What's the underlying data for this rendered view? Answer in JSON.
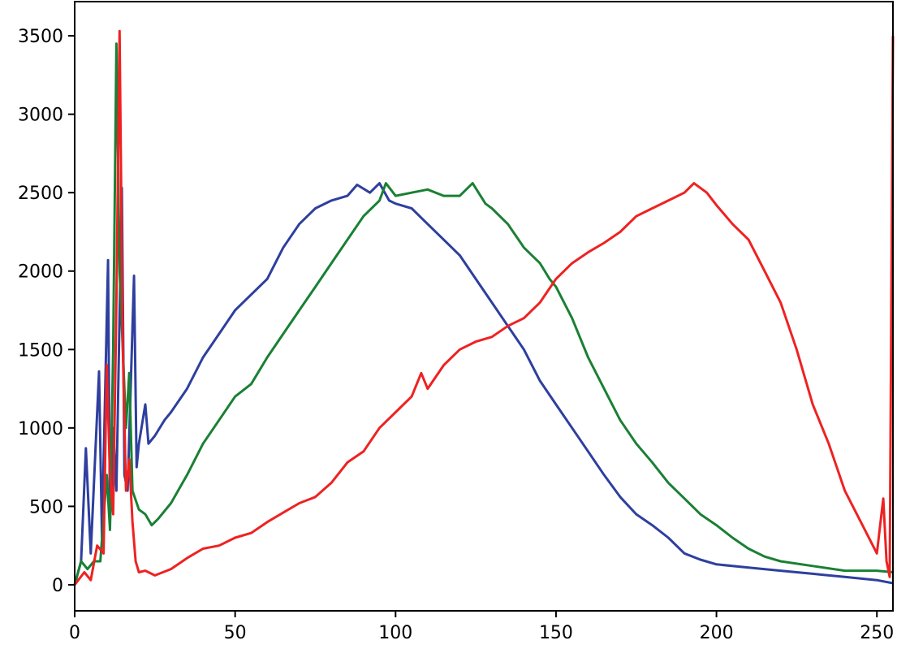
{
  "chart_data": {
    "type": "line",
    "title": "",
    "xlabel": "",
    "ylabel": "",
    "xlim": [
      0,
      255
    ],
    "ylim": [
      -166,
      3718
    ],
    "grid": false,
    "legend": "none",
    "xticks": [
      "0",
      "50",
      "100",
      "150",
      "200",
      "250"
    ],
    "yticks": [
      "0",
      "500",
      "1000",
      "1500",
      "2000",
      "2500",
      "3000",
      "3500"
    ],
    "series": [
      {
        "color": "#2e3f9e",
        "points": [
          [
            0,
            0
          ],
          [
            2,
            150
          ],
          [
            3.5,
            870
          ],
          [
            5,
            200
          ],
          [
            7.6,
            1360
          ],
          [
            8.5,
            300
          ],
          [
            10.4,
            2070
          ],
          [
            11,
            400
          ],
          [
            12,
            1000
          ],
          [
            13,
            600
          ],
          [
            14.7,
            2530
          ],
          [
            15.5,
            700
          ],
          [
            16.5,
            600
          ],
          [
            18.5,
            1970
          ],
          [
            19.3,
            750
          ],
          [
            20,
            900
          ],
          [
            22,
            1150
          ],
          [
            23,
            900
          ],
          [
            25,
            950
          ],
          [
            28,
            1050
          ],
          [
            30,
            1100
          ],
          [
            35,
            1250
          ],
          [
            40,
            1450
          ],
          [
            45,
            1600
          ],
          [
            50,
            1750
          ],
          [
            55,
            1850
          ],
          [
            60,
            1950
          ],
          [
            65,
            2150
          ],
          [
            70,
            2300
          ],
          [
            75,
            2400
          ],
          [
            80,
            2450
          ],
          [
            85,
            2480
          ],
          [
            88,
            2550
          ],
          [
            92,
            2500
          ],
          [
            95,
            2560
          ],
          [
            98,
            2450
          ],
          [
            100,
            2430
          ],
          [
            105,
            2400
          ],
          [
            110,
            2300
          ],
          [
            115,
            2200
          ],
          [
            120,
            2100
          ],
          [
            125,
            1950
          ],
          [
            130,
            1800
          ],
          [
            135,
            1650
          ],
          [
            140,
            1500
          ],
          [
            145,
            1300
          ],
          [
            150,
            1150
          ],
          [
            155,
            1000
          ],
          [
            160,
            850
          ],
          [
            165,
            700
          ],
          [
            170,
            560
          ],
          [
            175,
            450
          ],
          [
            180,
            380
          ],
          [
            185,
            300
          ],
          [
            190,
            200
          ],
          [
            195,
            160
          ],
          [
            200,
            130
          ],
          [
            210,
            110
          ],
          [
            220,
            90
          ],
          [
            230,
            70
          ],
          [
            240,
            50
          ],
          [
            250,
            30
          ],
          [
            255,
            10
          ]
        ]
      },
      {
        "color": "#1a8034",
        "points": [
          [
            0,
            0
          ],
          [
            2,
            150
          ],
          [
            4,
            100
          ],
          [
            6,
            150
          ],
          [
            8,
            150
          ],
          [
            10,
            700
          ],
          [
            11,
            350
          ],
          [
            12,
            1500
          ],
          [
            13,
            3450
          ],
          [
            14,
            2000
          ],
          [
            15,
            1500
          ],
          [
            16,
            1000
          ],
          [
            17,
            1350
          ],
          [
            18,
            600
          ],
          [
            20,
            480
          ],
          [
            22,
            450
          ],
          [
            24,
            380
          ],
          [
            26,
            420
          ],
          [
            30,
            520
          ],
          [
            35,
            700
          ],
          [
            40,
            900
          ],
          [
            45,
            1050
          ],
          [
            50,
            1200
          ],
          [
            55,
            1280
          ],
          [
            60,
            1450
          ],
          [
            65,
            1600
          ],
          [
            70,
            1750
          ],
          [
            75,
            1900
          ],
          [
            80,
            2050
          ],
          [
            85,
            2200
          ],
          [
            90,
            2350
          ],
          [
            95,
            2450
          ],
          [
            97,
            2560
          ],
          [
            100,
            2480
          ],
          [
            105,
            2500
          ],
          [
            110,
            2520
          ],
          [
            115,
            2480
          ],
          [
            120,
            2480
          ],
          [
            124,
            2560
          ],
          [
            128,
            2430
          ],
          [
            130,
            2400
          ],
          [
            135,
            2300
          ],
          [
            140,
            2150
          ],
          [
            145,
            2050
          ],
          [
            148,
            1950
          ],
          [
            150,
            1900
          ],
          [
            155,
            1700
          ],
          [
            160,
            1450
          ],
          [
            165,
            1250
          ],
          [
            170,
            1050
          ],
          [
            175,
            900
          ],
          [
            180,
            780
          ],
          [
            185,
            650
          ],
          [
            190,
            550
          ],
          [
            195,
            450
          ],
          [
            200,
            380
          ],
          [
            205,
            300
          ],
          [
            210,
            230
          ],
          [
            215,
            180
          ],
          [
            220,
            150
          ],
          [
            230,
            120
          ],
          [
            240,
            90
          ],
          [
            250,
            90
          ],
          [
            255,
            80
          ]
        ]
      },
      {
        "color": "#ee2222",
        "points": [
          [
            0,
            0
          ],
          [
            3,
            80
          ],
          [
            5,
            30
          ],
          [
            7,
            250
          ],
          [
            9,
            200
          ],
          [
            10,
            1400
          ],
          [
            11,
            700
          ],
          [
            12,
            450
          ],
          [
            13,
            1800
          ],
          [
            14,
            3530
          ],
          [
            15,
            1500
          ],
          [
            16,
            600
          ],
          [
            17,
            800
          ],
          [
            18,
            400
          ],
          [
            19,
            150
          ],
          [
            20,
            80
          ],
          [
            22,
            90
          ],
          [
            25,
            60
          ],
          [
            30,
            100
          ],
          [
            35,
            170
          ],
          [
            40,
            230
          ],
          [
            45,
            250
          ],
          [
            50,
            300
          ],
          [
            55,
            330
          ],
          [
            60,
            400
          ],
          [
            65,
            460
          ],
          [
            70,
            520
          ],
          [
            75,
            560
          ],
          [
            80,
            650
          ],
          [
            85,
            780
          ],
          [
            90,
            850
          ],
          [
            95,
            1000
          ],
          [
            100,
            1100
          ],
          [
            105,
            1200
          ],
          [
            108,
            1350
          ],
          [
            110,
            1250
          ],
          [
            115,
            1400
          ],
          [
            120,
            1500
          ],
          [
            125,
            1550
          ],
          [
            130,
            1580
          ],
          [
            135,
            1650
          ],
          [
            140,
            1700
          ],
          [
            145,
            1800
          ],
          [
            150,
            1950
          ],
          [
            155,
            2050
          ],
          [
            160,
            2120
          ],
          [
            165,
            2180
          ],
          [
            170,
            2250
          ],
          [
            175,
            2350
          ],
          [
            180,
            2400
          ],
          [
            185,
            2450
          ],
          [
            190,
            2500
          ],
          [
            193,
            2560
          ],
          [
            197,
            2500
          ],
          [
            200,
            2420
          ],
          [
            205,
            2300
          ],
          [
            210,
            2200
          ],
          [
            215,
            2000
          ],
          [
            220,
            1800
          ],
          [
            225,
            1500
          ],
          [
            230,
            1150
          ],
          [
            235,
            900
          ],
          [
            240,
            600
          ],
          [
            245,
            400
          ],
          [
            250,
            200
          ],
          [
            252,
            550
          ],
          [
            253,
            150
          ],
          [
            254,
            50
          ],
          [
            255,
            3500
          ]
        ]
      }
    ]
  }
}
